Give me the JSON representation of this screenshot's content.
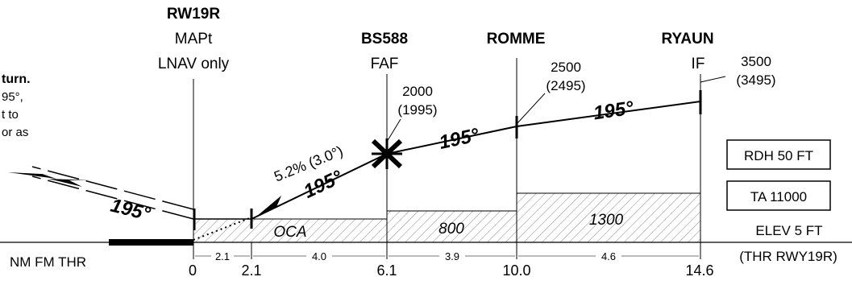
{
  "fixes": [
    {
      "id": "rw19r",
      "name": "RW19R",
      "role": "MAPt",
      "note": "LNAV only",
      "distance": "0"
    },
    {
      "id": "bs588",
      "name": "BS588",
      "role": "FAF",
      "distance": "6.1",
      "altitude": "2000",
      "altitude_qnh": "(1995)"
    },
    {
      "id": "romme",
      "name": "ROMME",
      "distance": "10.0",
      "altitude": "2500",
      "altitude_qnh": "(2495)"
    },
    {
      "id": "ryaun",
      "name": "RYAUN",
      "role": "IF",
      "distance": "14.6",
      "altitude": "3500",
      "altitude_qnh": "(3495)"
    }
  ],
  "extra_distance": "2.1",
  "segment_distances": [
    "2.1",
    "4.0",
    "3.9",
    "4.6"
  ],
  "scale": {
    "label": "NM FM THR",
    "ref": "(THR RWY19R)"
  },
  "tracks": {
    "main": "195°",
    "missed": "195°"
  },
  "glide": {
    "gradient": "5.2% (3.0°)"
  },
  "oca": {
    "label": "OCA",
    "values": [
      "800",
      "1300"
    ]
  },
  "boxes": {
    "rdh": "RDH 50 FT",
    "ta": "TA 11000",
    "elev": "ELEV 5 FT"
  },
  "missed_text": [
    "turn.",
    "95°,",
    "t to",
    "or as"
  ],
  "colors": {
    "ink": "#000000",
    "hatch": "#777777",
    "paper": "#ffffff"
  }
}
